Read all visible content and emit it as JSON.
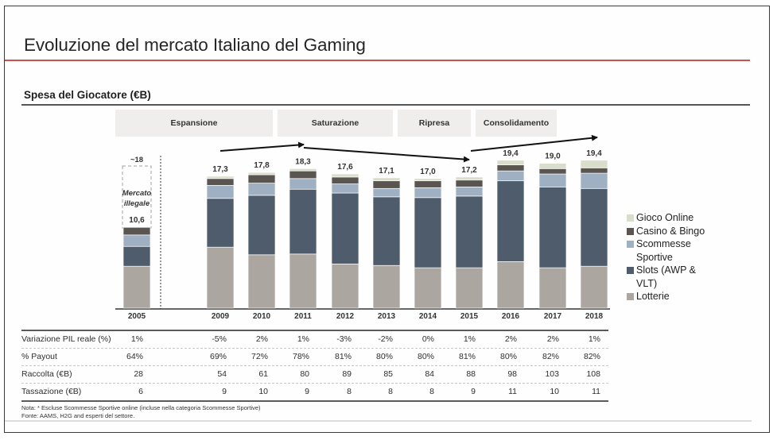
{
  "slide": {
    "title": "Evoluzione del mercato Italiano del Gaming",
    "subtitle": "Spesa del Giocatore (€B)"
  },
  "chart_data": {
    "type": "bar",
    "stacked": true,
    "title": "Spesa del Giocatore (€B)",
    "xlabel": "",
    "ylabel": "€B",
    "ylim": [
      0,
      20
    ],
    "grid": false,
    "categories": [
      "2005",
      "2009",
      "2010",
      "2011",
      "2012",
      "2013",
      "2014",
      "2015",
      "2016",
      "2017",
      "2018"
    ],
    "series": [
      {
        "name": "Lotterie",
        "color": "#aca6a0",
        "values": [
          5.5,
          8.0,
          7.0,
          7.1,
          5.8,
          5.6,
          5.3,
          5.3,
          6.1,
          5.3,
          5.5
        ]
      },
      {
        "name": "Slots (AWP & VLT)",
        "color": "#4f5c6b",
        "values": [
          2.6,
          6.4,
          7.8,
          8.5,
          9.3,
          9.0,
          9.2,
          9.4,
          10.6,
          10.6,
          10.2
        ]
      },
      {
        "name": "Scommesse Sportive",
        "color": "#9fb0c3",
        "values": [
          1.5,
          1.7,
          1.6,
          1.4,
          1.2,
          1.1,
          1.3,
          1.2,
          1.3,
          1.7,
          2.0
        ]
      },
      {
        "name": "Casino & Bingo",
        "color": "#5a5550",
        "values": [
          1.0,
          0.9,
          1.1,
          1.0,
          0.9,
          1.0,
          0.9,
          0.9,
          0.8,
          0.7,
          0.7
        ]
      },
      {
        "name": "Gioco Online",
        "color": "#d9ddcb",
        "values": [
          0,
          0.3,
          0.3,
          0.3,
          0.4,
          0.4,
          0.3,
          0.4,
          0.6,
          0.7,
          1.0
        ]
      }
    ],
    "totals": [
      10.6,
      17.3,
      17.8,
      18.3,
      17.6,
      17.1,
      17.0,
      17.2,
      19.4,
      19.0,
      19.4
    ],
    "total_labels": [
      "10,6",
      "17,3",
      "17,8",
      "18,3",
      "17,6",
      "17,1",
      "17,0",
      "17,2",
      "19,4",
      "19,0",
      "19,4"
    ],
    "phases": [
      {
        "label": "Espansione",
        "years": "2009-2011"
      },
      {
        "label": "Saturazione",
        "years": "2011-2013"
      },
      {
        "label": "Ripresa",
        "years": "2014-2015"
      },
      {
        "label": "Consolidamento",
        "years": "2016-2017"
      }
    ],
    "annotations": {
      "illegal_market_total": "~18",
      "illegal_market_line1": "Mercato",
      "illegal_market_line2": "illegale"
    },
    "legend": {
      "placement": "right",
      "items": [
        {
          "name": "Gioco Online",
          "color": "#d9ddcb"
        },
        {
          "name": "Casino & Bingo",
          "color": "#5a5550"
        },
        {
          "name": "Scommesse Sportive",
          "color": "#9fb0c3"
        },
        {
          "name": "Slots (AWP & VLT)",
          "color": "#4f5c6b"
        },
        {
          "name": "Lotterie",
          "color": "#aca6a0"
        }
      ]
    }
  },
  "table": {
    "columns": [
      "2005",
      "2009",
      "2010",
      "2011",
      "2012",
      "2013",
      "2014",
      "2015",
      "2016",
      "2017",
      "2018"
    ],
    "rows": [
      {
        "label": "Variazione PIL reale (%)",
        "values": [
          "1%",
          "-5%",
          "2%",
          "1%",
          "-3%",
          "-2%",
          "0%",
          "1%",
          "2%",
          "2%",
          "1%"
        ]
      },
      {
        "label": "% Payout",
        "values": [
          "64%",
          "69%",
          "72%",
          "78%",
          "81%",
          "80%",
          "80%",
          "81%",
          "80%",
          "82%",
          "82%"
        ]
      },
      {
        "label": "Raccolta (€B)",
        "values": [
          "28",
          "54",
          "61",
          "80",
          "89",
          "85",
          "84",
          "88",
          "98",
          "103",
          "108"
        ]
      },
      {
        "label": "Tassazione (€B)",
        "values": [
          "6",
          "9",
          "10",
          "9",
          "8",
          "8",
          "8",
          "9",
          "11",
          "10",
          "11"
        ]
      }
    ]
  },
  "footnotes": {
    "nota": "Nota: * Escluse Scommesse Sportive online (incluse nella categoria Scommesse Sportive)",
    "fonte": "Fonte: AAMS, H2G and esperti del settore."
  }
}
